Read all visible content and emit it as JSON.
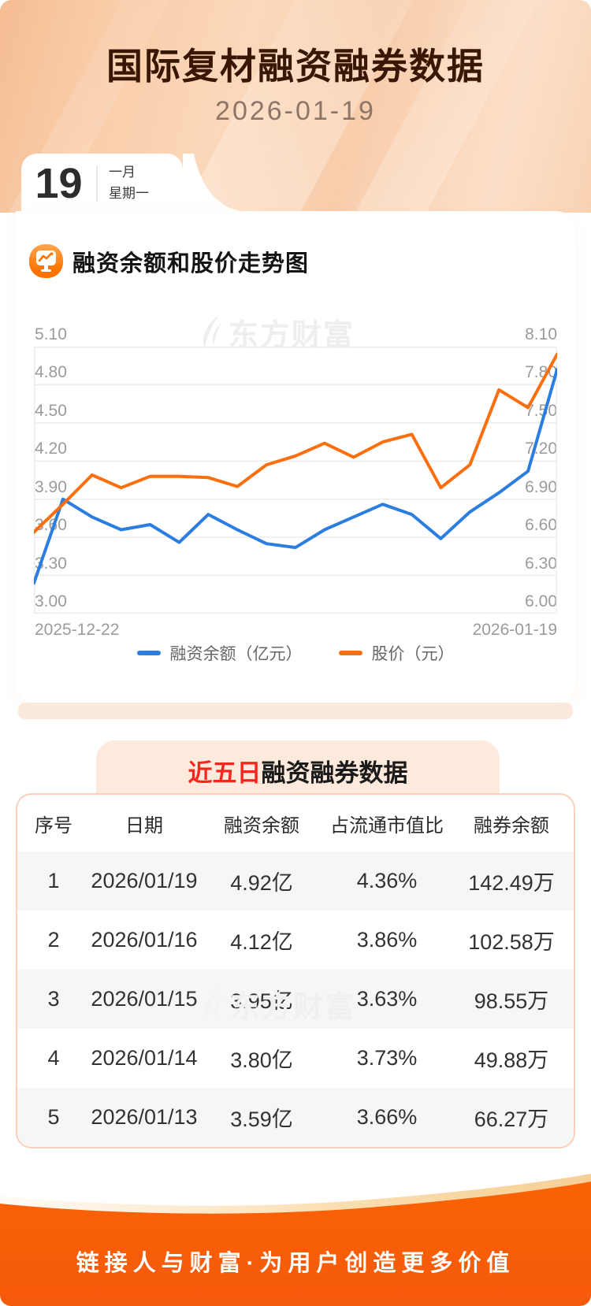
{
  "header": {
    "title": "国际复材融资融券数据",
    "date": "2026-01-19"
  },
  "calendar": {
    "day": "19",
    "month": "一月",
    "weekday": "星期一"
  },
  "chart_section": {
    "title": "融资余额和股价走势图"
  },
  "watermark": {
    "text": "东方财富"
  },
  "chart_data": {
    "type": "line",
    "title": "融资余额和股价走势图",
    "x_start_label": "2025-12-22",
    "x_end_label": "2026-01-19",
    "grid": true,
    "legend_position": "bottom",
    "left_axis": {
      "min": 3.0,
      "max": 5.1,
      "step": 0.3,
      "ticks": [
        "5.10",
        "4.80",
        "4.50",
        "4.20",
        "3.90",
        "3.60",
        "3.30",
        "3.00"
      ]
    },
    "right_axis": {
      "min": 6.0,
      "max": 8.1,
      "step": 0.3,
      "ticks": [
        "8.10",
        "7.80",
        "7.50",
        "7.20",
        "6.90",
        "6.60",
        "6.30",
        "6.00"
      ]
    },
    "series": [
      {
        "name": "融资余额（亿元）",
        "axis": "left",
        "color": "#2b7de0",
        "values": [
          3.24,
          3.9,
          3.76,
          3.66,
          3.7,
          3.56,
          3.78,
          3.66,
          3.55,
          3.52,
          3.66,
          3.76,
          3.86,
          3.78,
          3.59,
          3.8,
          3.95,
          4.12,
          4.92
        ]
      },
      {
        "name": "股价（元）",
        "axis": "right",
        "color": "#fd6e0e",
        "values": [
          6.64,
          6.86,
          7.09,
          6.99,
          7.08,
          7.08,
          7.07,
          7.0,
          7.17,
          7.24,
          7.34,
          7.23,
          7.35,
          7.41,
          6.99,
          7.17,
          7.76,
          7.62,
          8.04
        ]
      }
    ]
  },
  "table_section": {
    "title_highlight": "近五日",
    "title_rest": "融资融券数据",
    "columns": [
      "序号",
      "日期",
      "融资余额",
      "占流通市值比",
      "融券余额"
    ],
    "rows": [
      [
        "1",
        "2026/01/19",
        "4.92亿",
        "4.36%",
        "142.49万"
      ],
      [
        "2",
        "2026/01/16",
        "4.12亿",
        "3.86%",
        "102.58万"
      ],
      [
        "3",
        "2026/01/15",
        "3.95亿",
        "3.63%",
        "98.55万"
      ],
      [
        "4",
        "2026/01/14",
        "3.80亿",
        "3.73%",
        "49.88万"
      ],
      [
        "5",
        "2026/01/13",
        "3.59亿",
        "3.66%",
        "66.27万"
      ]
    ]
  },
  "footer": {
    "slogan": "链接人与财富·为用户创造更多价值"
  },
  "colors": {
    "header_gradient_start": "#f5bd92",
    "header_gradient_end": "#fcdfc9",
    "title_text": "#3a1704",
    "highlight_red": "#f5261f",
    "stripe": "#fce9dd",
    "tab_bg": "#fdeadc",
    "table_border": "#f9d0ba",
    "row_alt": "#f6f6f7",
    "footer_orange": "#f85d06",
    "series_blue": "#2b7de0",
    "series_orange": "#fd6e0e"
  }
}
